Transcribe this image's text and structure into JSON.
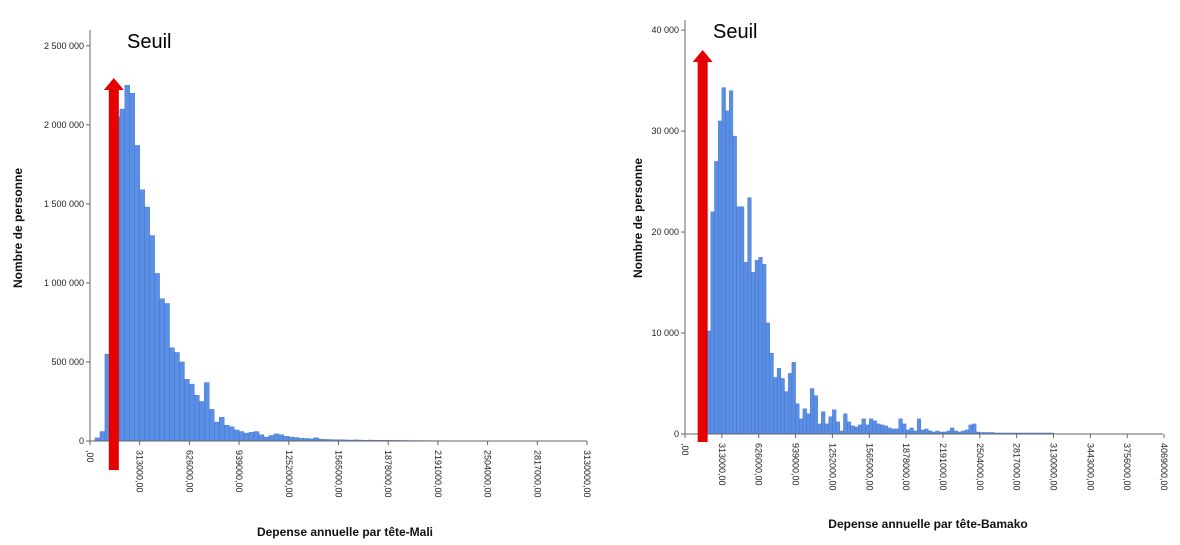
{
  "chart_data": [
    {
      "type": "bar",
      "title": "",
      "xlabel": "Depense annuelle par tête-Mali",
      "ylabel": "Nombre de personne",
      "ylim": [
        0,
        2600000
      ],
      "xlim": [
        0,
        3130000
      ],
      "y_ticks": [
        0,
        500000,
        1000000,
        1500000,
        2000000,
        2500000
      ],
      "y_tick_labels": [
        "0",
        "500 000",
        "1 000 000",
        "1 500 000",
        "2 000 000",
        "2 500 000"
      ],
      "x_ticks": [
        0,
        313000,
        626000,
        939000,
        1252000,
        1565000,
        1878000,
        2191000,
        2504000,
        2817000,
        3130000
      ],
      "x_tick_labels": [
        ",00",
        "313000,00",
        "626000,00",
        "939000,00",
        "1252000,00",
        "1565000,00",
        "1878000,00",
        "2191000,00",
        "2504000,00",
        "2817000,00",
        "3130000,00"
      ],
      "bin_width": 31300,
      "x": [
        46950,
        78250,
        109550,
        140850,
        172150,
        203450,
        234750,
        266050,
        297350,
        328650,
        359950,
        391250,
        422550,
        453850,
        485150,
        516450,
        547750,
        579050,
        610350,
        641650,
        672950,
        704250,
        735550,
        766850,
        798150,
        829450,
        860750,
        892050,
        923350,
        954650,
        985950,
        1017250,
        1048550,
        1079850,
        1111150,
        1142450,
        1173750,
        1205050,
        1236350,
        1267650,
        1298950,
        1330250,
        1361550,
        1392850,
        1424150,
        1455450,
        1486750,
        1518050,
        1549350,
        1580650,
        1611950,
        1643250,
        1674550,
        1705850,
        1737150,
        1768450,
        1799750,
        1831050,
        1862350,
        1893650,
        1924950,
        1956250,
        1987550,
        2018850,
        2050150,
        2081450,
        2112750,
        2144050,
        2175350,
        2206650,
        2237950,
        2269250,
        2300550,
        2331850,
        2363150,
        2394450,
        2425750,
        2457050,
        2488350,
        2519650,
        2550950,
        2582250,
        2613550,
        2644850,
        2676150,
        2707450,
        2738750,
        2770050,
        2801350,
        2832650,
        2863950,
        2895250,
        2926550,
        2957850,
        2989150,
        3020450,
        3051750,
        3083050,
        3114350
      ],
      "values": [
        20000,
        60000,
        550000,
        1350000,
        2050000,
        2100000,
        2250000,
        2200000,
        1870000,
        1590000,
        1480000,
        1300000,
        1060000,
        900000,
        870000,
        590000,
        560000,
        500000,
        390000,
        360000,
        290000,
        250000,
        370000,
        200000,
        120000,
        150000,
        100000,
        90000,
        70000,
        60000,
        50000,
        55000,
        60000,
        40000,
        25000,
        35000,
        45000,
        40000,
        30000,
        25000,
        22000,
        18000,
        16000,
        14000,
        20000,
        12000,
        10000,
        9000,
        8000,
        8000,
        7000,
        6000,
        7000,
        6000,
        5000,
        6000,
        5000,
        5000,
        4500,
        4000,
        4000,
        3500,
        3500,
        3000,
        3000,
        2800,
        2600,
        2500,
        2400,
        2200,
        2000,
        1800,
        1700,
        1600,
        1500,
        1400,
        1300,
        1200,
        1100,
        1000,
        900,
        900,
        800,
        800,
        700,
        700,
        600,
        600,
        500,
        500,
        450,
        400,
        400,
        350,
        300,
        300,
        250,
        200,
        200
      ],
      "annotation": {
        "text": "Seuil",
        "x": 150000
      }
    },
    {
      "type": "bar",
      "title": "",
      "xlabel": "Depense annuelle par tête-Bamako",
      "ylabel": "Nombre de personne",
      "ylim": [
        0,
        41000
      ],
      "xlim": [
        0,
        4060000
      ],
      "y_ticks": [
        0,
        10000,
        20000,
        30000,
        40000
      ],
      "y_tick_labels": [
        "0",
        "10 000",
        "20 000",
        "30 000",
        "40 000"
      ],
      "x_ticks": [
        0,
        313000,
        626000,
        939000,
        1252000,
        1565000,
        1878000,
        2191000,
        2504000,
        2817000,
        3130000,
        3443000,
        3756000,
        4069000
      ],
      "x_tick_labels": [
        ",00",
        "313000,00",
        "626000,00",
        "939000,00",
        "1252000,00",
        "1565000,00",
        "1878000,00",
        "2191000,00",
        "2504000,00",
        "2817000,00",
        "3130000,00",
        "3443000,00",
        "3756000,00",
        "4069000,00"
      ],
      "bin_width": 31300,
      "x": [
        140850,
        172150,
        203450,
        234750,
        266050,
        297350,
        328650,
        359950,
        391250,
        422550,
        453850,
        485150,
        516450,
        547750,
        579050,
        610350,
        641650,
        672950,
        704250,
        735550,
        766850,
        798150,
        829450,
        860750,
        892050,
        923350,
        954650,
        985950,
        1017250,
        1048550,
        1079850,
        1111150,
        1142450,
        1173750,
        1205050,
        1236350,
        1267650,
        1298950,
        1330250,
        1361550,
        1392850,
        1424150,
        1455450,
        1486750,
        1518050,
        1549350,
        1580650,
        1611950,
        1643250,
        1674550,
        1705850,
        1737150,
        1768450,
        1799750,
        1831050,
        1862350,
        1893650,
        1924950,
        1956250,
        1987550,
        2018850,
        2050150,
        2081450,
        2112750,
        2144050,
        2175350,
        2206650,
        2237950,
        2269250,
        2300550,
        2331850,
        2363150,
        2394450,
        2425750,
        2457050,
        2488350,
        2519650,
        2550950,
        2582250,
        2613550,
        2644850,
        2676150,
        2707450,
        2738750,
        2770050,
        2801350,
        2832650,
        2863950,
        2895250,
        2926550,
        2957850,
        2989150,
        3020450,
        3051750,
        3083050,
        3114350
      ],
      "values": [
        500,
        1500,
        10200,
        22000,
        27000,
        31000,
        34300,
        32000,
        34000,
        29500,
        22500,
        22500,
        17000,
        23400,
        16000,
        17200,
        17500,
        16800,
        11000,
        8000,
        5600,
        6500,
        5500,
        4200,
        6000,
        7100,
        3000,
        1500,
        2500,
        2000,
        4500,
        3800,
        1000,
        2200,
        1000,
        1700,
        2400,
        1200,
        300,
        2000,
        1200,
        800,
        700,
        900,
        1500,
        900,
        1500,
        1300,
        1000,
        900,
        800,
        600,
        500,
        500,
        1500,
        1000,
        400,
        600,
        300,
        1500,
        400,
        500,
        300,
        200,
        300,
        200,
        200,
        300,
        600,
        300,
        200,
        300,
        400,
        900,
        1000,
        200,
        150,
        150,
        150,
        150,
        100,
        100,
        100,
        100,
        100,
        100,
        100,
        100,
        100,
        100,
        100,
        100,
        100,
        100,
        100,
        100
      ],
      "annotation": {
        "text": "Seuil",
        "x": 150000
      }
    }
  ],
  "colors": {
    "bar": "#5b8fe6",
    "threshold_arrow": "#e60000"
  }
}
